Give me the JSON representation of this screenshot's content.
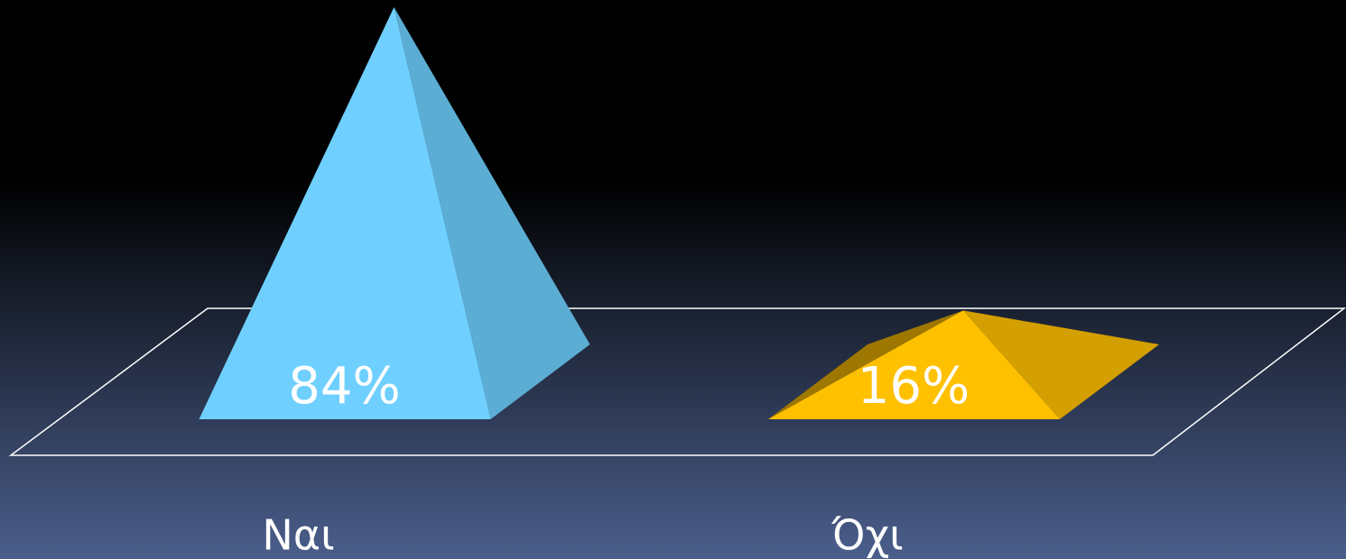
{
  "chart_data": {
    "type": "pyramid",
    "categories": [
      "Ναι",
      "Όχι"
    ],
    "values": [
      84,
      16
    ],
    "value_labels": [
      "84%",
      "16%"
    ],
    "colors": [
      "#6fd0ff",
      "#ffc000"
    ]
  }
}
